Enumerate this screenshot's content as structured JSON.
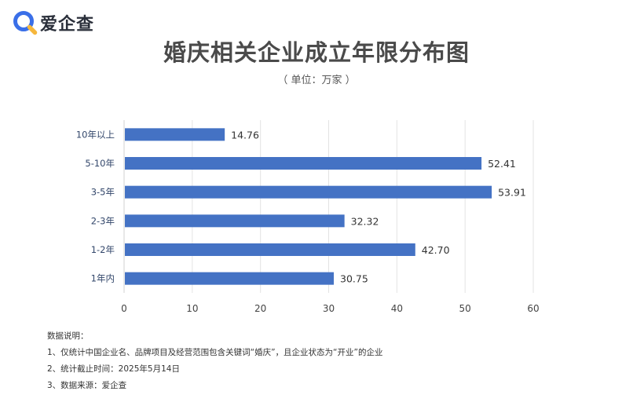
{
  "brand": {
    "name": "爱企查",
    "accent": "#3a6fe8",
    "accent_secondary": "#f6b73c"
  },
  "header": {
    "title": "婚庆相关企业成立年限分布图",
    "unit": "（ 单位：万家 ）"
  },
  "chart_data": {
    "type": "bar",
    "orientation": "horizontal",
    "categories": [
      "10年以上",
      "5-10年",
      "3-5年",
      "2-3年",
      "1-2年",
      "1年内"
    ],
    "values": [
      14.76,
      52.41,
      53.91,
      32.32,
      42.7,
      30.75
    ],
    "value_labels": [
      "14.76",
      "52.41",
      "53.91",
      "32.32",
      "42.70",
      "30.75"
    ],
    "xlim": [
      0,
      60
    ],
    "xticks": [
      0,
      10,
      20,
      30,
      40,
      50,
      60
    ],
    "bar_color": "#4472c4",
    "grid": true,
    "legend": "none"
  },
  "notes": {
    "heading": "数据说明：",
    "items": [
      "1、仅统计中国企业名、品牌项目及经营范围包含关键词“婚庆”，且企业状态为“开业”的企业",
      "2、统计截止时间：2025年5月14日",
      "3、数据来源：爱企查"
    ]
  }
}
